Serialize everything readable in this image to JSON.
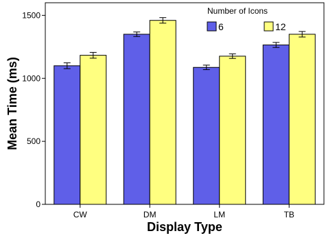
{
  "chart_data": {
    "type": "bar",
    "xlabel": "Display Type",
    "ylabel": "Mean Time (ms)",
    "categories": [
      "CW",
      "DM",
      "LM",
      "TB"
    ],
    "ylim": [
      0,
      1600
    ],
    "yticks": [
      0,
      500,
      1000,
      1500
    ],
    "legend": {
      "title": "Number of Icons",
      "placement": "top-right"
    },
    "grid": false,
    "series": [
      {
        "name": "6",
        "color": "#5f5fe8",
        "values": [
          1100,
          1350,
          1087,
          1265
        ],
        "error": [
          23,
          18,
          18,
          20
        ]
      },
      {
        "name": "12",
        "color": "#ffff80",
        "values": [
          1183,
          1460,
          1176,
          1350
        ],
        "error": [
          23,
          22,
          18,
          22
        ]
      }
    ]
  }
}
